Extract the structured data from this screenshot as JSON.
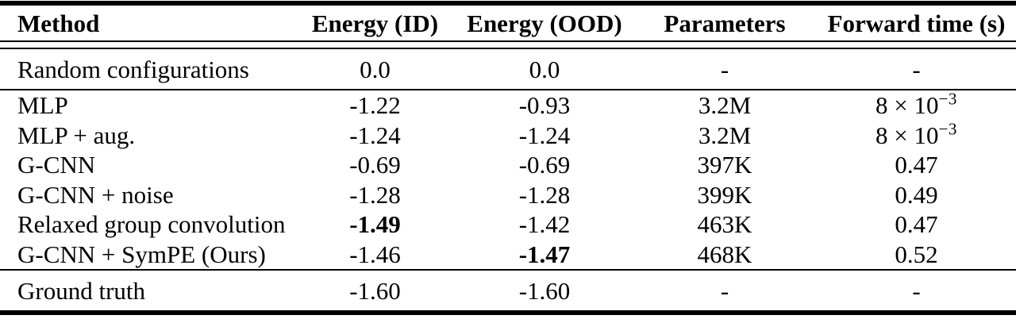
{
  "table": {
    "columns": [
      "Method",
      "Energy (ID)",
      "Energy (OOD)",
      "Parameters",
      "Forward time (s)"
    ],
    "column_keys": [
      "method",
      "energy-id",
      "energy-ood",
      "parameters",
      "forward-time"
    ],
    "colors": {
      "text": "#000000",
      "rule": "#000000",
      "background": "#ffffff"
    },
    "sections": [
      {
        "name": "baseline",
        "rows": [
          {
            "cells": [
              {
                "t": "Random configurations"
              },
              {
                "t": "0.0"
              },
              {
                "t": "0.0"
              },
              {
                "t": "-"
              },
              {
                "t": "-"
              }
            ]
          }
        ]
      },
      {
        "name": "methods",
        "rows": [
          {
            "cells": [
              {
                "t": "MLP"
              },
              {
                "t": "-1.22"
              },
              {
                "t": "-0.93"
              },
              {
                "t": "3.2M"
              },
              {
                "t": "8 × 10",
                "sup": "−3"
              }
            ]
          },
          {
            "cells": [
              {
                "t": "MLP + aug."
              },
              {
                "t": "-1.24"
              },
              {
                "t": "-1.24"
              },
              {
                "t": "3.2M"
              },
              {
                "t": "8 × 10",
                "sup": "−3"
              }
            ]
          },
          {
            "cells": [
              {
                "t": "G-CNN"
              },
              {
                "t": "-0.69"
              },
              {
                "t": "-0.69"
              },
              {
                "t": "397K"
              },
              {
                "t": "0.47"
              }
            ]
          },
          {
            "cells": [
              {
                "t": "G-CNN + noise"
              },
              {
                "t": "-1.28"
              },
              {
                "t": "-1.28"
              },
              {
                "t": "399K"
              },
              {
                "t": "0.49"
              }
            ]
          },
          {
            "cells": [
              {
                "t": "Relaxed group convolution"
              },
              {
                "t": "-1.49",
                "bold": true
              },
              {
                "t": "-1.42"
              },
              {
                "t": "463K"
              },
              {
                "t": "0.47"
              }
            ]
          },
          {
            "cells": [
              {
                "t": "G-CNN + SymPE (Ours)"
              },
              {
                "t": "-1.46"
              },
              {
                "t": "-1.47",
                "bold": true
              },
              {
                "t": "468K"
              },
              {
                "t": "0.52"
              }
            ]
          }
        ]
      },
      {
        "name": "ground-truth",
        "rows": [
          {
            "cells": [
              {
                "t": "Ground truth"
              },
              {
                "t": "-1.60"
              },
              {
                "t": "-1.60"
              },
              {
                "t": "-"
              },
              {
                "t": "-"
              }
            ]
          }
        ]
      }
    ]
  }
}
